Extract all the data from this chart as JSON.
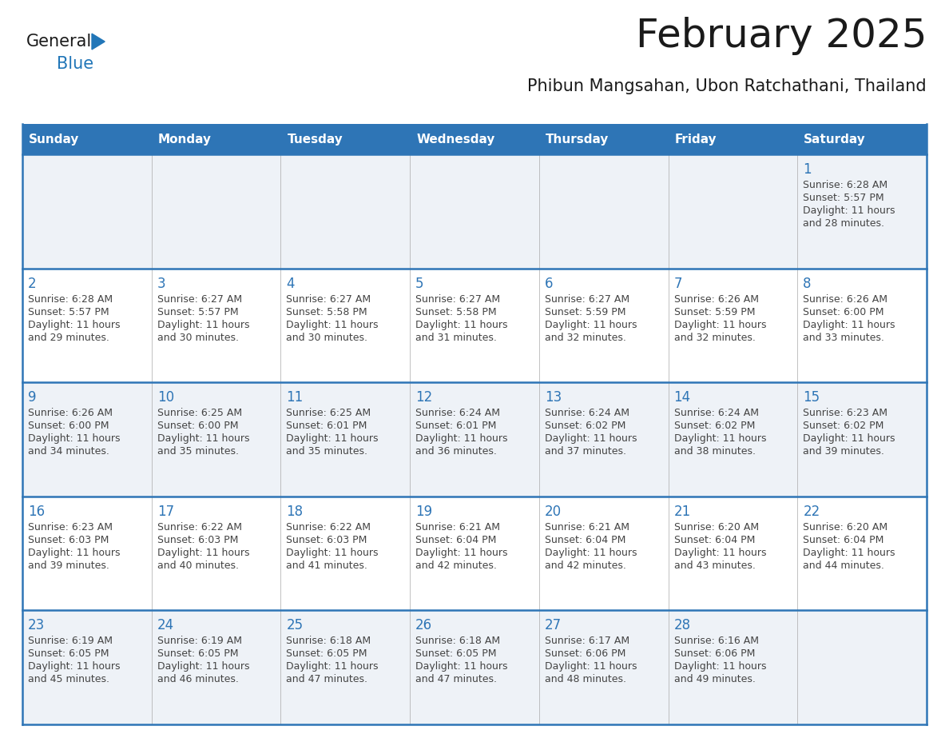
{
  "title": "February 2025",
  "subtitle": "Phibun Mangsahan, Ubon Ratchathani, Thailand",
  "days_of_week": [
    "Sunday",
    "Monday",
    "Tuesday",
    "Wednesday",
    "Thursday",
    "Friday",
    "Saturday"
  ],
  "header_bg": "#2e75b6",
  "header_fg": "#ffffff",
  "cell_bg_odd": "#eef2f7",
  "cell_bg_even": "#ffffff",
  "title_color": "#1a1a1a",
  "subtitle_color": "#1a1a1a",
  "day_num_color": "#2e75b6",
  "text_color": "#444444",
  "border_color": "#2e75b6",
  "logo_general_color": "#1a1a1a",
  "logo_blue_color": "#2176b8",
  "logo_triangle_color": "#2176b8",
  "calendar_data": [
    [
      null,
      null,
      null,
      null,
      null,
      null,
      {
        "day": 1,
        "sunrise": "6:28 AM",
        "sunset": "5:57 PM",
        "daylight_h": "Daylight: 11 hours",
        "daylight_m": "and 28 minutes."
      }
    ],
    [
      {
        "day": 2,
        "sunrise": "6:28 AM",
        "sunset": "5:57 PM",
        "daylight_h": "Daylight: 11 hours",
        "daylight_m": "and 29 minutes."
      },
      {
        "day": 3,
        "sunrise": "6:27 AM",
        "sunset": "5:57 PM",
        "daylight_h": "Daylight: 11 hours",
        "daylight_m": "and 30 minutes."
      },
      {
        "day": 4,
        "sunrise": "6:27 AM",
        "sunset": "5:58 PM",
        "daylight_h": "Daylight: 11 hours",
        "daylight_m": "and 30 minutes."
      },
      {
        "day": 5,
        "sunrise": "6:27 AM",
        "sunset": "5:58 PM",
        "daylight_h": "Daylight: 11 hours",
        "daylight_m": "and 31 minutes."
      },
      {
        "day": 6,
        "sunrise": "6:27 AM",
        "sunset": "5:59 PM",
        "daylight_h": "Daylight: 11 hours",
        "daylight_m": "and 32 minutes."
      },
      {
        "day": 7,
        "sunrise": "6:26 AM",
        "sunset": "5:59 PM",
        "daylight_h": "Daylight: 11 hours",
        "daylight_m": "and 32 minutes."
      },
      {
        "day": 8,
        "sunrise": "6:26 AM",
        "sunset": "6:00 PM",
        "daylight_h": "Daylight: 11 hours",
        "daylight_m": "and 33 minutes."
      }
    ],
    [
      {
        "day": 9,
        "sunrise": "6:26 AM",
        "sunset": "6:00 PM",
        "daylight_h": "Daylight: 11 hours",
        "daylight_m": "and 34 minutes."
      },
      {
        "day": 10,
        "sunrise": "6:25 AM",
        "sunset": "6:00 PM",
        "daylight_h": "Daylight: 11 hours",
        "daylight_m": "and 35 minutes."
      },
      {
        "day": 11,
        "sunrise": "6:25 AM",
        "sunset": "6:01 PM",
        "daylight_h": "Daylight: 11 hours",
        "daylight_m": "and 35 minutes."
      },
      {
        "day": 12,
        "sunrise": "6:24 AM",
        "sunset": "6:01 PM",
        "daylight_h": "Daylight: 11 hours",
        "daylight_m": "and 36 minutes."
      },
      {
        "day": 13,
        "sunrise": "6:24 AM",
        "sunset": "6:02 PM",
        "daylight_h": "Daylight: 11 hours",
        "daylight_m": "and 37 minutes."
      },
      {
        "day": 14,
        "sunrise": "6:24 AM",
        "sunset": "6:02 PM",
        "daylight_h": "Daylight: 11 hours",
        "daylight_m": "and 38 minutes."
      },
      {
        "day": 15,
        "sunrise": "6:23 AM",
        "sunset": "6:02 PM",
        "daylight_h": "Daylight: 11 hours",
        "daylight_m": "and 39 minutes."
      }
    ],
    [
      {
        "day": 16,
        "sunrise": "6:23 AM",
        "sunset": "6:03 PM",
        "daylight_h": "Daylight: 11 hours",
        "daylight_m": "and 39 minutes."
      },
      {
        "day": 17,
        "sunrise": "6:22 AM",
        "sunset": "6:03 PM",
        "daylight_h": "Daylight: 11 hours",
        "daylight_m": "and 40 minutes."
      },
      {
        "day": 18,
        "sunrise": "6:22 AM",
        "sunset": "6:03 PM",
        "daylight_h": "Daylight: 11 hours",
        "daylight_m": "and 41 minutes."
      },
      {
        "day": 19,
        "sunrise": "6:21 AM",
        "sunset": "6:04 PM",
        "daylight_h": "Daylight: 11 hours",
        "daylight_m": "and 42 minutes."
      },
      {
        "day": 20,
        "sunrise": "6:21 AM",
        "sunset": "6:04 PM",
        "daylight_h": "Daylight: 11 hours",
        "daylight_m": "and 42 minutes."
      },
      {
        "day": 21,
        "sunrise": "6:20 AM",
        "sunset": "6:04 PM",
        "daylight_h": "Daylight: 11 hours",
        "daylight_m": "and 43 minutes."
      },
      {
        "day": 22,
        "sunrise": "6:20 AM",
        "sunset": "6:04 PM",
        "daylight_h": "Daylight: 11 hours",
        "daylight_m": "and 44 minutes."
      }
    ],
    [
      {
        "day": 23,
        "sunrise": "6:19 AM",
        "sunset": "6:05 PM",
        "daylight_h": "Daylight: 11 hours",
        "daylight_m": "and 45 minutes."
      },
      {
        "day": 24,
        "sunrise": "6:19 AM",
        "sunset": "6:05 PM",
        "daylight_h": "Daylight: 11 hours",
        "daylight_m": "and 46 minutes."
      },
      {
        "day": 25,
        "sunrise": "6:18 AM",
        "sunset": "6:05 PM",
        "daylight_h": "Daylight: 11 hours",
        "daylight_m": "and 47 minutes."
      },
      {
        "day": 26,
        "sunrise": "6:18 AM",
        "sunset": "6:05 PM",
        "daylight_h": "Daylight: 11 hours",
        "daylight_m": "and 47 minutes."
      },
      {
        "day": 27,
        "sunrise": "6:17 AM",
        "sunset": "6:06 PM",
        "daylight_h": "Daylight: 11 hours",
        "daylight_m": "and 48 minutes."
      },
      {
        "day": 28,
        "sunrise": "6:16 AM",
        "sunset": "6:06 PM",
        "daylight_h": "Daylight: 11 hours",
        "daylight_m": "and 49 minutes."
      },
      null
    ]
  ]
}
